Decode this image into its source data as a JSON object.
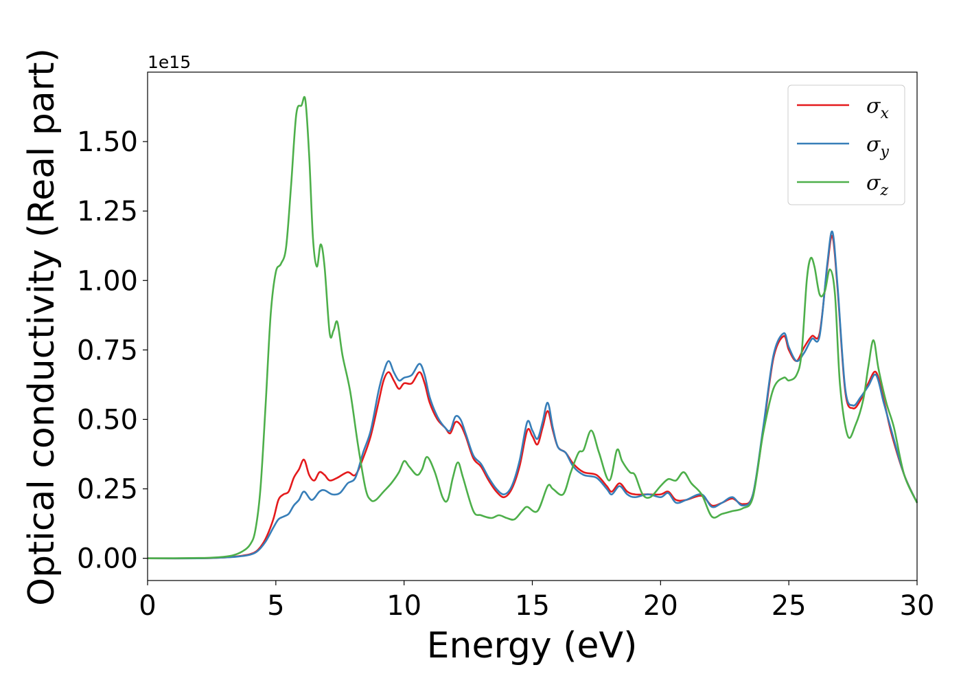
{
  "chart_data": {
    "type": "line",
    "xlabel": "Energy (eV)",
    "ylabel": "Optical conductivity (Real part)",
    "offset_text": "1e15",
    "xlim": [
      0,
      30
    ],
    "ylim": [
      -0.08,
      1.75
    ],
    "x_ticks": [
      {
        "value": 0,
        "label": "0"
      },
      {
        "value": 5,
        "label": "5"
      },
      {
        "value": 10,
        "label": "10"
      },
      {
        "value": 15,
        "label": "15"
      },
      {
        "value": 20,
        "label": "20"
      },
      {
        "value": 25,
        "label": "25"
      },
      {
        "value": 30,
        "label": "30"
      }
    ],
    "y_ticks": [
      {
        "value": 0.0,
        "label": "0.00"
      },
      {
        "value": 0.25,
        "label": "0.25"
      },
      {
        "value": 0.5,
        "label": "0.50"
      },
      {
        "value": 0.75,
        "label": "0.75"
      },
      {
        "value": 1.0,
        "label": "1.00"
      },
      {
        "value": 1.25,
        "label": "1.25"
      },
      {
        "value": 1.5,
        "label": "1.50"
      }
    ],
    "grid": false,
    "legend_position": "top-right",
    "series": [
      {
        "name": "σx",
        "label_base": "σ",
        "label_sub": "x",
        "color": "#e41a1c",
        "points": [
          [
            0,
            0
          ],
          [
            2,
            0
          ],
          [
            3,
            0.003
          ],
          [
            3.5,
            0.007
          ],
          [
            4,
            0.015
          ],
          [
            4.3,
            0.03
          ],
          [
            4.6,
            0.07
          ],
          [
            4.9,
            0.14
          ],
          [
            5.1,
            0.21
          ],
          [
            5.3,
            0.23
          ],
          [
            5.5,
            0.24
          ],
          [
            5.7,
            0.29
          ],
          [
            5.9,
            0.32
          ],
          [
            6.1,
            0.355
          ],
          [
            6.3,
            0.3
          ],
          [
            6.5,
            0.28
          ],
          [
            6.7,
            0.31
          ],
          [
            6.9,
            0.3
          ],
          [
            7.1,
            0.28
          ],
          [
            7.4,
            0.29
          ],
          [
            7.8,
            0.31
          ],
          [
            8.1,
            0.3
          ],
          [
            8.4,
            0.36
          ],
          [
            8.7,
            0.44
          ],
          [
            9.0,
            0.56
          ],
          [
            9.2,
            0.64
          ],
          [
            9.4,
            0.67
          ],
          [
            9.6,
            0.64
          ],
          [
            9.8,
            0.61
          ],
          [
            10.0,
            0.63
          ],
          [
            10.3,
            0.63
          ],
          [
            10.6,
            0.67
          ],
          [
            10.8,
            0.63
          ],
          [
            11.0,
            0.56
          ],
          [
            11.3,
            0.5
          ],
          [
            11.6,
            0.47
          ],
          [
            11.8,
            0.45
          ],
          [
            12.0,
            0.49
          ],
          [
            12.2,
            0.48
          ],
          [
            12.4,
            0.44
          ],
          [
            12.7,
            0.36
          ],
          [
            13.0,
            0.33
          ],
          [
            13.3,
            0.28
          ],
          [
            13.6,
            0.24
          ],
          [
            13.9,
            0.22
          ],
          [
            14.2,
            0.25
          ],
          [
            14.5,
            0.33
          ],
          [
            14.8,
            0.46
          ],
          [
            15.0,
            0.44
          ],
          [
            15.2,
            0.41
          ],
          [
            15.4,
            0.47
          ],
          [
            15.6,
            0.53
          ],
          [
            15.8,
            0.46
          ],
          [
            16.0,
            0.4
          ],
          [
            16.3,
            0.38
          ],
          [
            16.6,
            0.34
          ],
          [
            17.0,
            0.31
          ],
          [
            17.5,
            0.3
          ],
          [
            17.9,
            0.26
          ],
          [
            18.1,
            0.24
          ],
          [
            18.4,
            0.27
          ],
          [
            18.7,
            0.24
          ],
          [
            19.0,
            0.23
          ],
          [
            19.5,
            0.23
          ],
          [
            20.0,
            0.23
          ],
          [
            20.3,
            0.24
          ],
          [
            20.6,
            0.21
          ],
          [
            21.0,
            0.21
          ],
          [
            21.6,
            0.225
          ],
          [
            22.0,
            0.19
          ],
          [
            22.4,
            0.2
          ],
          [
            22.8,
            0.215
          ],
          [
            23.2,
            0.195
          ],
          [
            23.6,
            0.23
          ],
          [
            24.0,
            0.46
          ],
          [
            24.4,
            0.72
          ],
          [
            24.8,
            0.8
          ],
          [
            25.0,
            0.75
          ],
          [
            25.3,
            0.71
          ],
          [
            25.6,
            0.76
          ],
          [
            25.9,
            0.8
          ],
          [
            26.2,
            0.81
          ],
          [
            26.5,
            1.05
          ],
          [
            26.7,
            1.16
          ],
          [
            26.9,
            0.97
          ],
          [
            27.2,
            0.6
          ],
          [
            27.5,
            0.54
          ],
          [
            27.8,
            0.57
          ],
          [
            28.1,
            0.63
          ],
          [
            28.4,
            0.67
          ],
          [
            28.7,
            0.57
          ],
          [
            29.0,
            0.45
          ],
          [
            29.5,
            0.3
          ],
          [
            30.0,
            0.2
          ]
        ]
      },
      {
        "name": "σy",
        "label_base": "σ",
        "label_sub": "y",
        "color": "#377eb8",
        "points": [
          [
            0,
            0
          ],
          [
            2,
            0
          ],
          [
            3,
            0.003
          ],
          [
            3.5,
            0.006
          ],
          [
            4,
            0.013
          ],
          [
            4.3,
            0.027
          ],
          [
            4.6,
            0.06
          ],
          [
            4.9,
            0.11
          ],
          [
            5.1,
            0.14
          ],
          [
            5.3,
            0.15
          ],
          [
            5.5,
            0.16
          ],
          [
            5.7,
            0.19
          ],
          [
            5.9,
            0.21
          ],
          [
            6.1,
            0.24
          ],
          [
            6.4,
            0.21
          ],
          [
            6.7,
            0.24
          ],
          [
            6.9,
            0.245
          ],
          [
            7.2,
            0.23
          ],
          [
            7.5,
            0.235
          ],
          [
            7.8,
            0.27
          ],
          [
            8.1,
            0.29
          ],
          [
            8.4,
            0.38
          ],
          [
            8.7,
            0.46
          ],
          [
            9.0,
            0.6
          ],
          [
            9.2,
            0.67
          ],
          [
            9.4,
            0.71
          ],
          [
            9.6,
            0.67
          ],
          [
            9.8,
            0.64
          ],
          [
            10.0,
            0.65
          ],
          [
            10.3,
            0.66
          ],
          [
            10.6,
            0.7
          ],
          [
            10.8,
            0.66
          ],
          [
            11.0,
            0.58
          ],
          [
            11.3,
            0.51
          ],
          [
            11.6,
            0.47
          ],
          [
            11.8,
            0.46
          ],
          [
            12.0,
            0.51
          ],
          [
            12.2,
            0.5
          ],
          [
            12.4,
            0.45
          ],
          [
            12.7,
            0.37
          ],
          [
            13.0,
            0.34
          ],
          [
            13.3,
            0.29
          ],
          [
            13.6,
            0.25
          ],
          [
            13.9,
            0.23
          ],
          [
            14.2,
            0.26
          ],
          [
            14.5,
            0.35
          ],
          [
            14.8,
            0.49
          ],
          [
            15.0,
            0.46
          ],
          [
            15.2,
            0.43
          ],
          [
            15.4,
            0.49
          ],
          [
            15.6,
            0.56
          ],
          [
            15.8,
            0.47
          ],
          [
            16.0,
            0.4
          ],
          [
            16.3,
            0.38
          ],
          [
            16.6,
            0.33
          ],
          [
            17.0,
            0.3
          ],
          [
            17.5,
            0.29
          ],
          [
            17.9,
            0.25
          ],
          [
            18.1,
            0.23
          ],
          [
            18.4,
            0.26
          ],
          [
            18.7,
            0.23
          ],
          [
            19.0,
            0.22
          ],
          [
            19.5,
            0.23
          ],
          [
            20.0,
            0.22
          ],
          [
            20.3,
            0.235
          ],
          [
            20.6,
            0.2
          ],
          [
            21.0,
            0.21
          ],
          [
            21.6,
            0.23
          ],
          [
            22.0,
            0.185
          ],
          [
            22.4,
            0.2
          ],
          [
            22.8,
            0.22
          ],
          [
            23.2,
            0.19
          ],
          [
            23.6,
            0.23
          ],
          [
            24.0,
            0.47
          ],
          [
            24.4,
            0.73
          ],
          [
            24.8,
            0.81
          ],
          [
            25.0,
            0.76
          ],
          [
            25.3,
            0.71
          ],
          [
            25.6,
            0.74
          ],
          [
            25.9,
            0.79
          ],
          [
            26.2,
            0.8
          ],
          [
            26.5,
            1.06
          ],
          [
            26.7,
            1.175
          ],
          [
            26.9,
            0.98
          ],
          [
            27.2,
            0.61
          ],
          [
            27.5,
            0.55
          ],
          [
            27.8,
            0.58
          ],
          [
            28.1,
            0.62
          ],
          [
            28.4,
            0.66
          ],
          [
            28.7,
            0.56
          ],
          [
            29.0,
            0.46
          ],
          [
            29.5,
            0.3
          ],
          [
            30.0,
            0.2
          ]
        ]
      },
      {
        "name": "σz",
        "label_base": "σ",
        "label_sub": "z",
        "color": "#4daf4a",
        "points": [
          [
            0,
            0
          ],
          [
            2,
            0.001
          ],
          [
            2.8,
            0.004
          ],
          [
            3.3,
            0.01
          ],
          [
            3.7,
            0.025
          ],
          [
            4.0,
            0.05
          ],
          [
            4.2,
            0.1
          ],
          [
            4.4,
            0.25
          ],
          [
            4.6,
            0.55
          ],
          [
            4.8,
            0.88
          ],
          [
            5.0,
            1.03
          ],
          [
            5.2,
            1.06
          ],
          [
            5.4,
            1.12
          ],
          [
            5.6,
            1.35
          ],
          [
            5.8,
            1.6
          ],
          [
            6.0,
            1.63
          ],
          [
            6.15,
            1.65
          ],
          [
            6.3,
            1.45
          ],
          [
            6.45,
            1.15
          ],
          [
            6.6,
            1.05
          ],
          [
            6.75,
            1.13
          ],
          [
            6.9,
            1.05
          ],
          [
            7.1,
            0.81
          ],
          [
            7.25,
            0.82
          ],
          [
            7.4,
            0.85
          ],
          [
            7.6,
            0.73
          ],
          [
            7.9,
            0.6
          ],
          [
            8.2,
            0.41
          ],
          [
            8.5,
            0.25
          ],
          [
            8.7,
            0.21
          ],
          [
            8.9,
            0.21
          ],
          [
            9.2,
            0.24
          ],
          [
            9.5,
            0.27
          ],
          [
            9.8,
            0.31
          ],
          [
            10.0,
            0.35
          ],
          [
            10.2,
            0.33
          ],
          [
            10.5,
            0.3
          ],
          [
            10.7,
            0.32
          ],
          [
            10.9,
            0.365
          ],
          [
            11.2,
            0.31
          ],
          [
            11.5,
            0.22
          ],
          [
            11.7,
            0.21
          ],
          [
            11.9,
            0.29
          ],
          [
            12.1,
            0.345
          ],
          [
            12.3,
            0.29
          ],
          [
            12.7,
            0.17
          ],
          [
            13.0,
            0.155
          ],
          [
            13.4,
            0.145
          ],
          [
            13.7,
            0.155
          ],
          [
            14.0,
            0.145
          ],
          [
            14.3,
            0.14
          ],
          [
            14.6,
            0.17
          ],
          [
            14.8,
            0.185
          ],
          [
            15.2,
            0.17
          ],
          [
            15.6,
            0.26
          ],
          [
            15.8,
            0.25
          ],
          [
            16.2,
            0.23
          ],
          [
            16.5,
            0.31
          ],
          [
            16.8,
            0.38
          ],
          [
            17.0,
            0.39
          ],
          [
            17.3,
            0.46
          ],
          [
            17.6,
            0.38
          ],
          [
            18.0,
            0.28
          ],
          [
            18.3,
            0.39
          ],
          [
            18.5,
            0.35
          ],
          [
            18.8,
            0.31
          ],
          [
            19.0,
            0.3
          ],
          [
            19.3,
            0.23
          ],
          [
            19.6,
            0.22
          ],
          [
            20.0,
            0.26
          ],
          [
            20.3,
            0.285
          ],
          [
            20.6,
            0.28
          ],
          [
            20.9,
            0.31
          ],
          [
            21.2,
            0.27
          ],
          [
            21.6,
            0.23
          ],
          [
            22.0,
            0.15
          ],
          [
            22.4,
            0.16
          ],
          [
            22.8,
            0.17
          ],
          [
            23.2,
            0.18
          ],
          [
            23.6,
            0.22
          ],
          [
            24.0,
            0.45
          ],
          [
            24.4,
            0.61
          ],
          [
            24.8,
            0.65
          ],
          [
            25.0,
            0.64
          ],
          [
            25.3,
            0.66
          ],
          [
            25.5,
            0.74
          ],
          [
            25.7,
            1.0
          ],
          [
            25.85,
            1.08
          ],
          [
            26.0,
            1.05
          ],
          [
            26.2,
            0.95
          ],
          [
            26.4,
            0.96
          ],
          [
            26.6,
            1.04
          ],
          [
            26.8,
            0.95
          ],
          [
            27.0,
            0.62
          ],
          [
            27.3,
            0.44
          ],
          [
            27.6,
            0.48
          ],
          [
            27.9,
            0.57
          ],
          [
            28.1,
            0.69
          ],
          [
            28.3,
            0.785
          ],
          [
            28.5,
            0.68
          ],
          [
            28.8,
            0.56
          ],
          [
            29.1,
            0.47
          ],
          [
            29.5,
            0.3
          ],
          [
            30.0,
            0.2
          ]
        ]
      }
    ]
  }
}
